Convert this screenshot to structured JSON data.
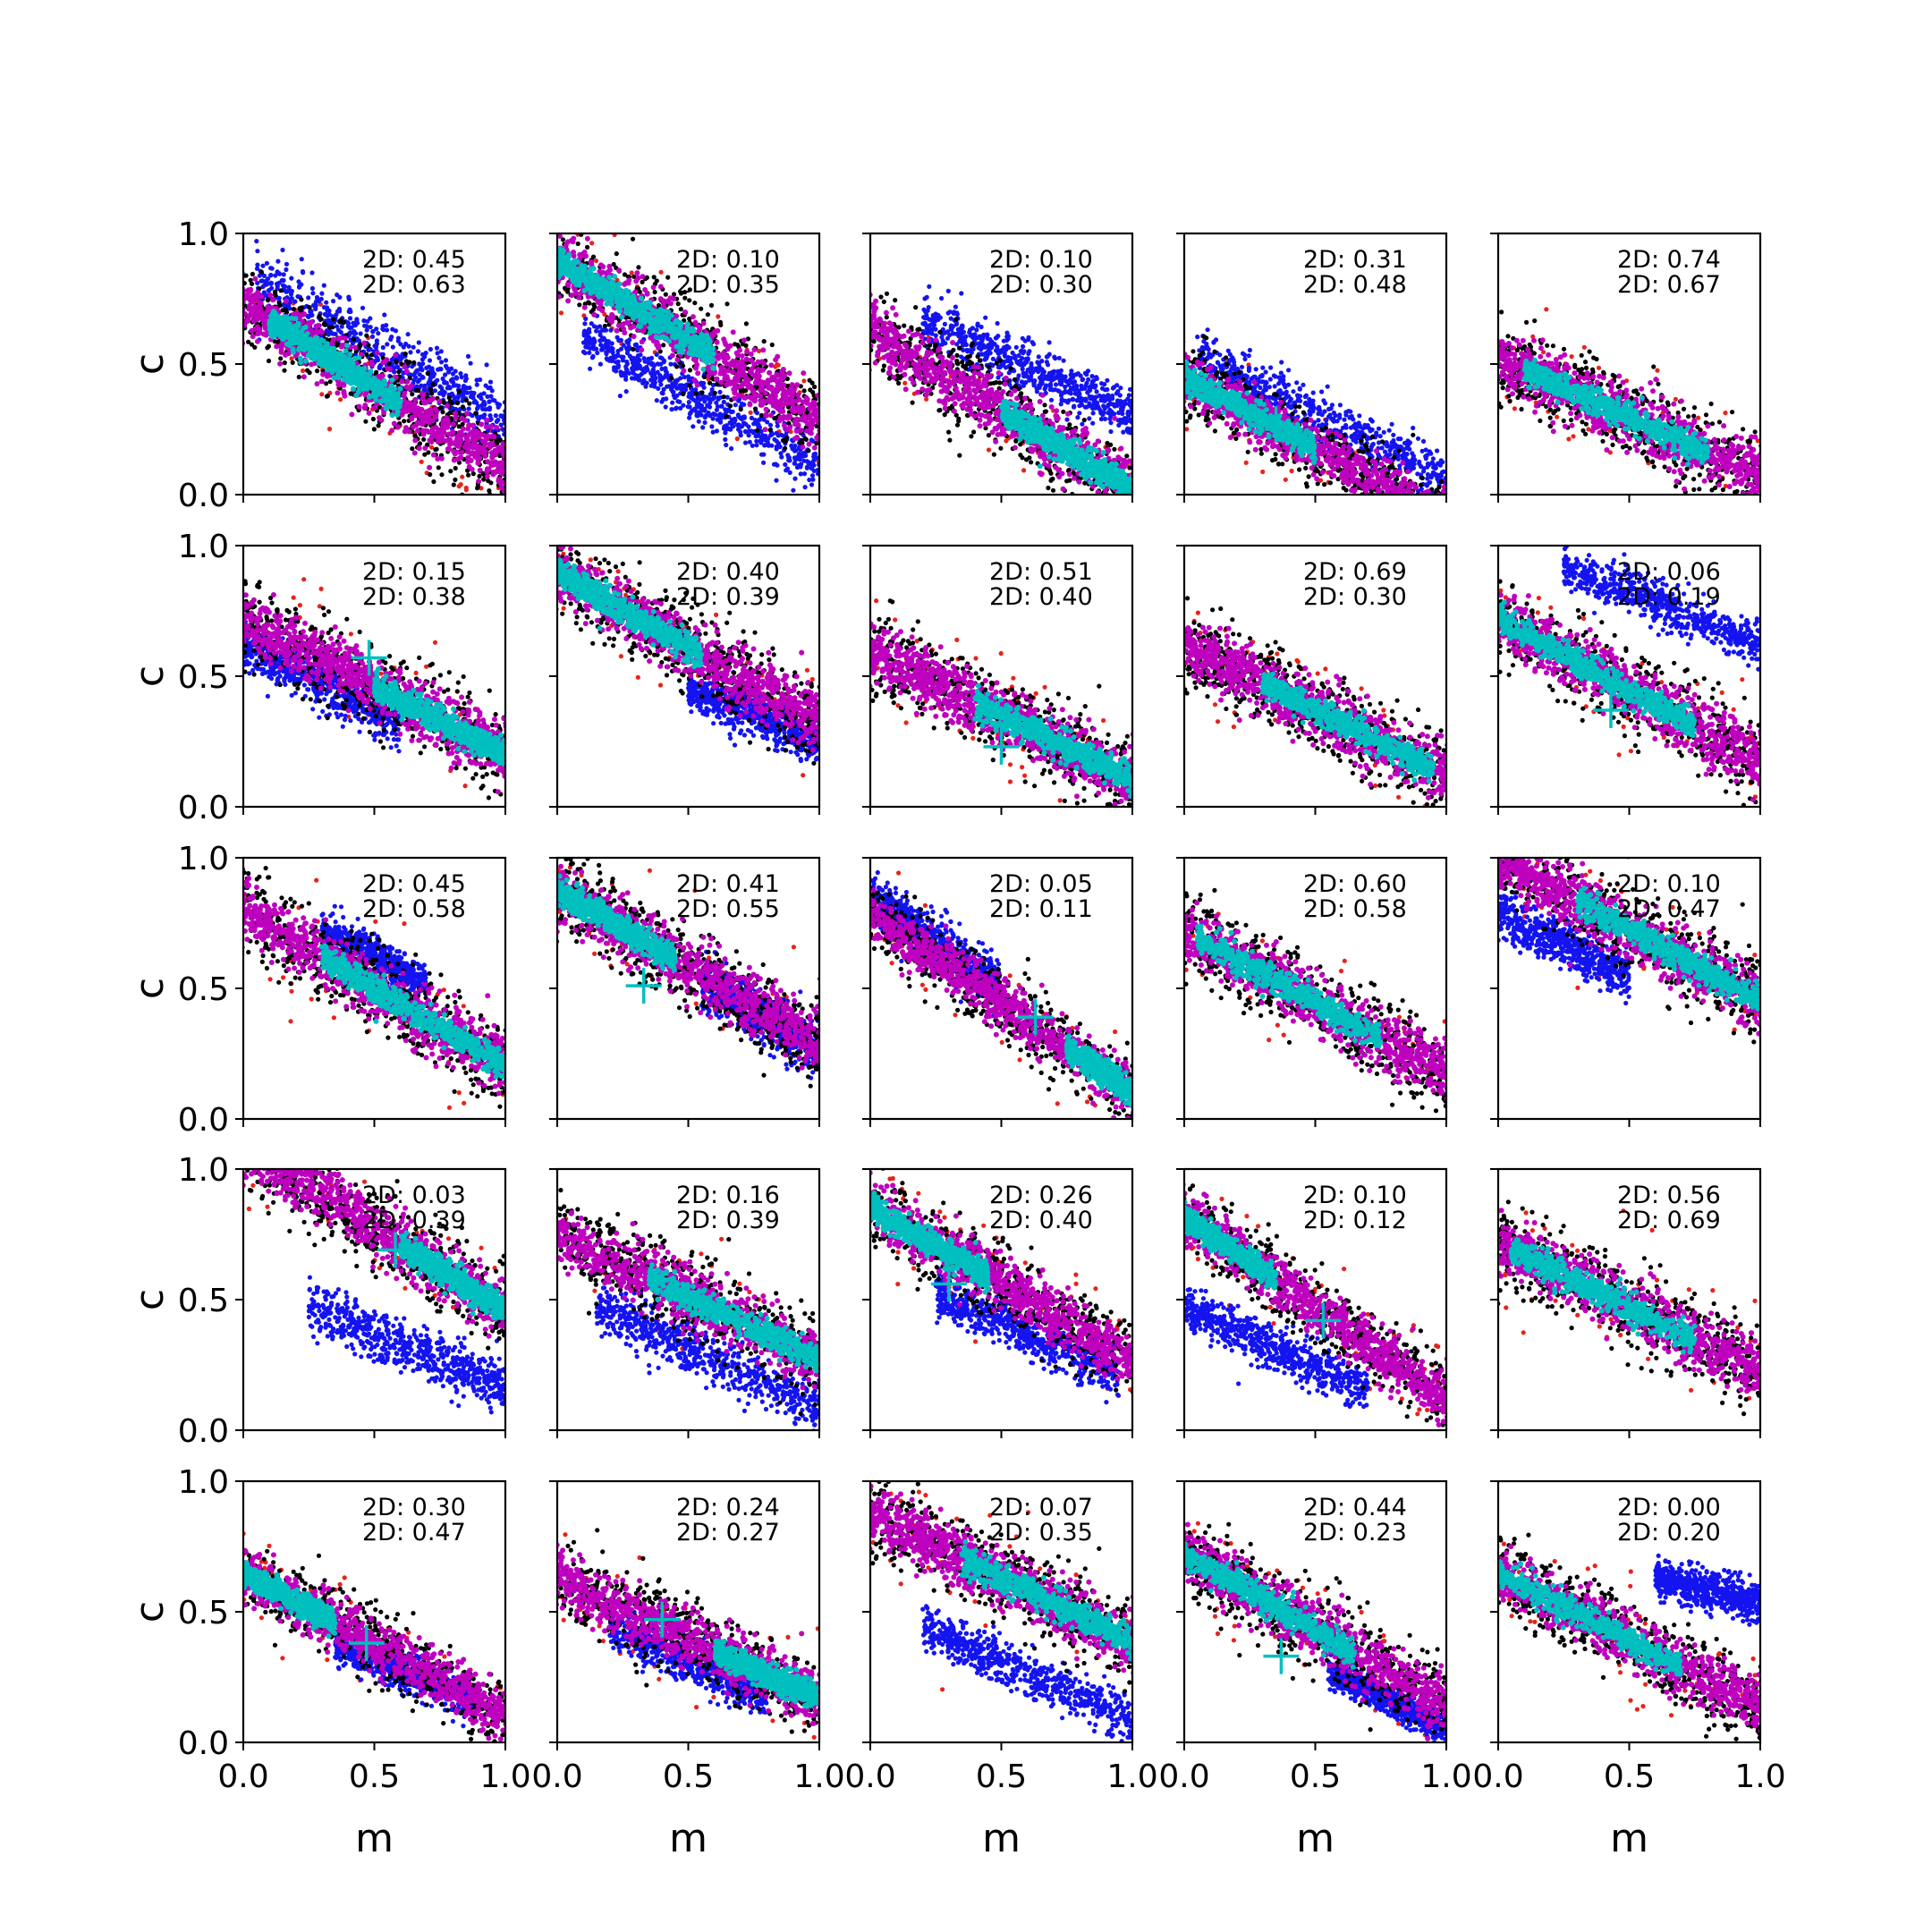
{
  "chart_data": {
    "type": "scatter",
    "layout": "5x5 grid of scatter panels",
    "xlabel": "m",
    "ylabel": "c",
    "xlim": [
      0,
      1
    ],
    "ylim": [
      0,
      1
    ],
    "xticks": [
      "0.0",
      "0.5",
      "1.0"
    ],
    "yticks": [
      "0.0",
      "0.5",
      "1.0"
    ],
    "grid": false,
    "legend": "none",
    "annotation_prefix": "2D:",
    "series_colors": {
      "population_a": "#e8231a",
      "population_b": "#1414f0",
      "outer_samples": "#000000",
      "middle_samples": "#bf00bf",
      "core_samples": "#00bfbf",
      "truth_marker": "#00bfbf"
    },
    "panels": [
      {
        "row": 0,
        "col": 0,
        "annot": [
          "0.45",
          "0.63"
        ],
        "main": {
          "m0": 0.0,
          "c0": 0.73,
          "slope": -0.63,
          "sw": 0.15,
          "core": [
            0.1,
            0.6
          ]
        },
        "blue": {
          "m0": 0.1,
          "c0": 0.78,
          "slope": -0.55,
          "range": [
            0.05,
            1.0
          ],
          "sw": 0.1
        },
        "marker": null
      },
      {
        "row": 0,
        "col": 1,
        "annot": [
          "0.10",
          "0.35"
        ],
        "main": {
          "m0": 0.0,
          "c0": 0.9,
          "slope": -0.62,
          "sw": 0.15,
          "core": [
            0.0,
            0.6
          ]
        },
        "blue": {
          "m0": 0.2,
          "c0": 0.55,
          "slope": -0.55,
          "range": [
            0.1,
            1.0
          ],
          "sw": 0.08
        },
        "marker": null
      },
      {
        "row": 0,
        "col": 2,
        "annot": [
          "0.10",
          "0.30"
        ],
        "main": {
          "m0": 0.0,
          "c0": 0.62,
          "slope": -0.6,
          "sw": 0.15,
          "core": [
            0.5,
            1.0
          ]
        },
        "blue": {
          "m0": 0.3,
          "c0": 0.62,
          "slope": -0.45,
          "range": [
            0.2,
            1.0
          ],
          "sw": 0.08
        },
        "marker": null
      },
      {
        "row": 0,
        "col": 3,
        "annot": [
          "0.31",
          "0.48"
        ],
        "main": {
          "m0": 0.0,
          "c0": 0.45,
          "slope": -0.55,
          "sw": 0.13,
          "core": [
            0.0,
            0.5
          ]
        },
        "blue": {
          "m0": 0.15,
          "c0": 0.48,
          "slope": -0.5,
          "range": [
            0.05,
            1.0
          ],
          "sw": 0.08
        },
        "marker": {
          "m": 0.35,
          "c": 0.27
        }
      },
      {
        "row": 0,
        "col": 4,
        "annot": [
          "0.74",
          "0.67"
        ],
        "main": {
          "m0": 0.0,
          "c0": 0.52,
          "slope": -0.45,
          "sw": 0.15,
          "core": [
            0.1,
            0.8
          ]
        },
        "blue": null,
        "marker": null
      },
      {
        "row": 1,
        "col": 0,
        "annot": [
          "0.15",
          "0.38"
        ],
        "main": {
          "m0": 0.0,
          "c0": 0.72,
          "slope": -0.52,
          "sw": 0.15,
          "core": [
            0.5,
            1.0
          ]
        },
        "blue": {
          "m0": 0.0,
          "c0": 0.62,
          "slope": -0.5,
          "range": [
            0.0,
            0.6
          ],
          "sw": 0.08
        },
        "marker": {
          "m": 0.48,
          "c": 0.57
        }
      },
      {
        "row": 1,
        "col": 1,
        "annot": [
          "0.40",
          "0.39"
        ],
        "main": {
          "m0": 0.0,
          "c0": 0.9,
          "slope": -0.58,
          "sw": 0.15,
          "core": [
            0.0,
            0.55
          ]
        },
        "blue": {
          "m0": 0.5,
          "c0": 0.45,
          "slope": -0.4,
          "range": [
            0.5,
            1.0
          ],
          "sw": 0.07
        },
        "marker": null
      },
      {
        "row": 1,
        "col": 2,
        "annot": [
          "0.51",
          "0.40"
        ],
        "main": {
          "m0": 0.0,
          "c0": 0.6,
          "slope": -0.5,
          "sw": 0.15,
          "core": [
            0.4,
            1.0
          ]
        },
        "blue": null,
        "marker": {
          "m": 0.5,
          "c": 0.23
        }
      },
      {
        "row": 1,
        "col": 3,
        "annot": [
          "0.69",
          "0.30"
        ],
        "main": {
          "m0": 0.0,
          "c0": 0.62,
          "slope": -0.5,
          "sw": 0.15,
          "core": [
            0.3,
            0.95
          ]
        },
        "blue": null,
        "marker": null
      },
      {
        "row": 1,
        "col": 4,
        "annot": [
          "0.06",
          "0.19"
        ],
        "main": {
          "m0": 0.0,
          "c0": 0.72,
          "slope": -0.55,
          "sw": 0.15,
          "core": [
            0.0,
            0.75
          ]
        },
        "blue": {
          "m0": 0.3,
          "c0": 0.9,
          "slope": -0.4,
          "range": [
            0.25,
            1.0
          ],
          "sw": 0.07
        },
        "marker": {
          "m": 0.43,
          "c": 0.37
        }
      },
      {
        "row": 2,
        "col": 0,
        "annot": [
          "0.45",
          "0.58"
        ],
        "main": {
          "m0": 0.0,
          "c0": 0.8,
          "slope": -0.6,
          "sw": 0.15,
          "core": [
            0.3,
            1.0
          ]
        },
        "blue": {
          "m0": 0.3,
          "c0": 0.72,
          "slope": -0.5,
          "range": [
            0.3,
            0.7
          ],
          "sw": 0.06
        },
        "marker": null
      },
      {
        "row": 2,
        "col": 1,
        "annot": [
          "0.41",
          "0.55"
        ],
        "main": {
          "m0": 0.0,
          "c0": 0.88,
          "slope": -0.6,
          "sw": 0.15,
          "core": [
            0.0,
            0.45
          ]
        },
        "blue": {
          "m0": 0.6,
          "c0": 0.5,
          "slope": -0.6,
          "range": [
            0.55,
            1.0
          ],
          "sw": 0.08
        },
        "marker": {
          "m": 0.33,
          "c": 0.51
        }
      },
      {
        "row": 2,
        "col": 2,
        "annot": [
          "0.05",
          "0.11"
        ],
        "main": {
          "m0": 0.0,
          "c0": 0.78,
          "slope": -0.68,
          "sw": 0.13,
          "core": [
            0.75,
            1.0
          ]
        },
        "blue": {
          "m0": 0.0,
          "c0": 0.85,
          "slope": -0.7,
          "range": [
            0.0,
            0.5
          ],
          "sw": 0.08
        },
        "marker": {
          "m": 0.63,
          "c": 0.39
        }
      },
      {
        "row": 2,
        "col": 3,
        "annot": [
          "0.60",
          "0.58"
        ],
        "main": {
          "m0": 0.0,
          "c0": 0.72,
          "slope": -0.55,
          "sw": 0.15,
          "core": [
            0.05,
            0.75
          ]
        },
        "blue": null,
        "marker": null
      },
      {
        "row": 2,
        "col": 4,
        "annot": [
          "0.10",
          "0.47"
        ],
        "main": {
          "m0": 0.0,
          "c0": 1.0,
          "slope": -0.55,
          "sw": 0.15,
          "core": [
            0.3,
            1.0
          ]
        },
        "blue": {
          "m0": 0.0,
          "c0": 0.78,
          "slope": -0.45,
          "range": [
            0.0,
            0.5
          ],
          "sw": 0.07
        },
        "marker": null
      },
      {
        "row": 3,
        "col": 0,
        "annot": [
          "0.03",
          "0.39"
        ],
        "main": {
          "m0": 0.0,
          "c0": 1.1,
          "slope": -0.65,
          "sw": 0.15,
          "core": [
            0.6,
            1.0
          ]
        },
        "blue": {
          "m0": 0.3,
          "c0": 0.45,
          "slope": -0.4,
          "range": [
            0.25,
            1.0
          ],
          "sw": 0.08
        },
        "marker": {
          "m": 0.58,
          "c": 0.69
        }
      },
      {
        "row": 3,
        "col": 1,
        "annot": [
          "0.16",
          "0.39"
        ],
        "main": {
          "m0": 0.0,
          "c0": 0.75,
          "slope": -0.48,
          "sw": 0.15,
          "core": [
            0.35,
            1.0
          ]
        },
        "blue": {
          "m0": 0.2,
          "c0": 0.45,
          "slope": -0.45,
          "range": [
            0.15,
            1.0
          ],
          "sw": 0.08
        },
        "marker": null
      },
      {
        "row": 3,
        "col": 2,
        "annot": [
          "0.26",
          "0.40"
        ],
        "main": {
          "m0": 0.0,
          "c0": 0.85,
          "slope": -0.58,
          "sw": 0.14,
          "core": [
            0.0,
            0.45
          ]
        },
        "blue": {
          "m0": 0.3,
          "c0": 0.5,
          "slope": -0.45,
          "range": [
            0.25,
            0.95
          ],
          "sw": 0.07
        },
        "marker": {
          "m": 0.3,
          "c": 0.56
        }
      },
      {
        "row": 3,
        "col": 3,
        "annot": [
          "0.10",
          "0.12"
        ],
        "main": {
          "m0": 0.0,
          "c0": 0.82,
          "slope": -0.7,
          "sw": 0.13,
          "core": [
            0.0,
            0.35
          ]
        },
        "blue": {
          "m0": 0.05,
          "c0": 0.45,
          "slope": -0.45,
          "range": [
            0.0,
            0.7
          ],
          "sw": 0.07
        },
        "marker": {
          "m": 0.53,
          "c": 0.42
        }
      },
      {
        "row": 3,
        "col": 4,
        "annot": [
          "0.56",
          "0.69"
        ],
        "main": {
          "m0": 0.0,
          "c0": 0.72,
          "slope": -0.5,
          "sw": 0.15,
          "core": [
            0.05,
            0.75
          ]
        },
        "blue": null,
        "marker": null
      },
      {
        "row": 4,
        "col": 0,
        "annot": [
          "0.30",
          "0.47"
        ],
        "main": {
          "m0": 0.0,
          "c0": 0.65,
          "slope": -0.55,
          "sw": 0.13,
          "core": [
            0.0,
            0.35
          ]
        },
        "blue": {
          "m0": 0.4,
          "c0": 0.35,
          "slope": -0.4,
          "range": [
            0.35,
            0.9
          ],
          "sw": 0.06
        },
        "marker": {
          "m": 0.47,
          "c": 0.38
        }
      },
      {
        "row": 4,
        "col": 1,
        "annot": [
          "0.24",
          "0.27"
        ],
        "main": {
          "m0": 0.0,
          "c0": 0.62,
          "slope": -0.45,
          "sw": 0.14,
          "core": [
            0.6,
            1.0
          ]
        },
        "blue": {
          "m0": 0.3,
          "c0": 0.4,
          "slope": -0.45,
          "range": [
            0.2,
            0.8
          ],
          "sw": 0.07
        },
        "marker": {
          "m": 0.4,
          "c": 0.47
        }
      },
      {
        "row": 4,
        "col": 2,
        "annot": [
          "0.07",
          "0.35"
        ],
        "main": {
          "m0": 0.0,
          "c0": 0.88,
          "slope": -0.5,
          "sw": 0.15,
          "core": [
            0.35,
            1.0
          ]
        },
        "blue": {
          "m0": 0.3,
          "c0": 0.4,
          "slope": -0.45,
          "range": [
            0.2,
            1.0
          ],
          "sw": 0.07
        },
        "marker": null
      },
      {
        "row": 4,
        "col": 3,
        "annot": [
          "0.44",
          "0.23"
        ],
        "main": {
          "m0": 0.0,
          "c0": 0.72,
          "slope": -0.58,
          "sw": 0.15,
          "core": [
            0.0,
            0.65
          ]
        },
        "blue": {
          "m0": 0.6,
          "c0": 0.25,
          "slope": -0.5,
          "range": [
            0.55,
            1.0
          ],
          "sw": 0.05
        },
        "marker": {
          "m": 0.37,
          "c": 0.33
        }
      },
      {
        "row": 4,
        "col": 4,
        "annot": [
          "0.00",
          "0.20"
        ],
        "main": {
          "m0": 0.0,
          "c0": 0.65,
          "slope": -0.52,
          "sw": 0.14,
          "core": [
            0.0,
            0.7
          ]
        },
        "blue": {
          "m0": 0.65,
          "c0": 0.62,
          "slope": -0.25,
          "range": [
            0.6,
            1.0
          ],
          "sw": 0.06
        },
        "marker": null
      }
    ]
  }
}
